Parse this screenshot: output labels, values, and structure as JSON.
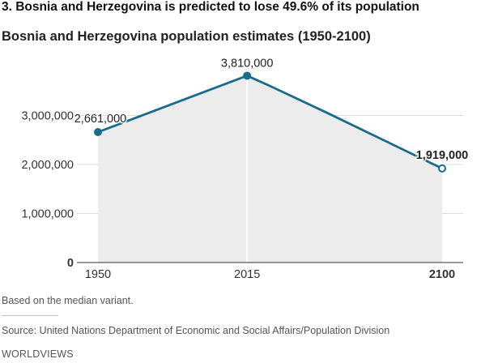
{
  "headline": "3. Bosnia and Herzegovina is predicted to lose 49.6% of its population",
  "chart_data": {
    "type": "area",
    "title": "Bosnia and Herzegovina population estimates (1950-2100)",
    "xlabel": "",
    "ylabel": "",
    "x": [
      1950,
      2015,
      2025,
      2050,
      2100
    ],
    "values": [
      2661000,
      3810000,
      3600000,
      3050000,
      1919000
    ],
    "ylim": [
      0,
      3900000
    ],
    "xlim": [
      1950,
      2100
    ],
    "yticks": [
      {
        "value": 0,
        "label": "0"
      },
      {
        "value": 1000000,
        "label": "1,000,000"
      },
      {
        "value": 2000000,
        "label": "2,000,000"
      },
      {
        "value": 3000000,
        "label": "3,000,000"
      }
    ],
    "xticks": [
      {
        "value": 1950,
        "label": "1950"
      },
      {
        "value": 2015,
        "label": "2015"
      },
      {
        "value": 2100,
        "label": "2100"
      }
    ],
    "annotations": [
      {
        "x": 1950,
        "y": 2661000,
        "label": "2,661,000"
      },
      {
        "x": 2015,
        "y": 3810000,
        "label": "3,810,000"
      },
      {
        "x": 2100,
        "y": 1919000,
        "label": "1,919,000"
      }
    ],
    "grid": true,
    "colors": {
      "line": "#1a6b8c",
      "fill": "#ececec",
      "grid": "#dcdcdc"
    }
  },
  "footer": {
    "note": "Based on the median variant.",
    "source": "Source: United Nations Department of Economic and Social Affairs/Population Division",
    "credit": "WORLDVIEWS"
  }
}
